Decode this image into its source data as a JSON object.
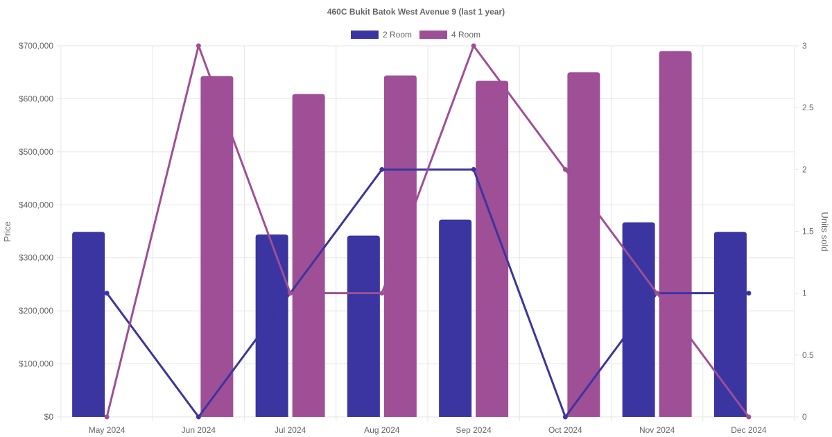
{
  "chart_data": {
    "type": "bar",
    "title": "460C Bukit Batok West Avenue 9 (last 1 year)",
    "categories": [
      "May 2024",
      "Jun 2024",
      "Jul 2024",
      "Aug 2024",
      "Sep 2024",
      "Oct 2024",
      "Nov 2024",
      "Dec 2024"
    ],
    "ylabel": "Price",
    "y2label": "Units sold",
    "ylim": [
      0,
      700000
    ],
    "y2lim": [
      0,
      3
    ],
    "y_ticks": [
      "$0",
      "$100,000",
      "$200,000",
      "$300,000",
      "$400,000",
      "$500,000",
      "$600,000",
      "$700,000"
    ],
    "y2_ticks": [
      "0",
      "0.5",
      "1",
      "1.5",
      "2",
      "2.5",
      "3"
    ],
    "legend_position": "top",
    "grid": true,
    "series": [
      {
        "name": "2 Room",
        "color": "#3a35a0",
        "price": [
          349000,
          null,
          344000,
          342000,
          372000,
          null,
          367000,
          349000
        ],
        "units_sold": [
          1,
          0,
          1,
          2,
          2,
          0,
          1,
          1
        ]
      },
      {
        "name": "4 Room",
        "color": "#9e4f96",
        "price": [
          null,
          643000,
          609000,
          644000,
          634000,
          650000,
          690000,
          null
        ],
        "units_sold": [
          0,
          3,
          1,
          1,
          3,
          2,
          1,
          0
        ]
      }
    ]
  }
}
